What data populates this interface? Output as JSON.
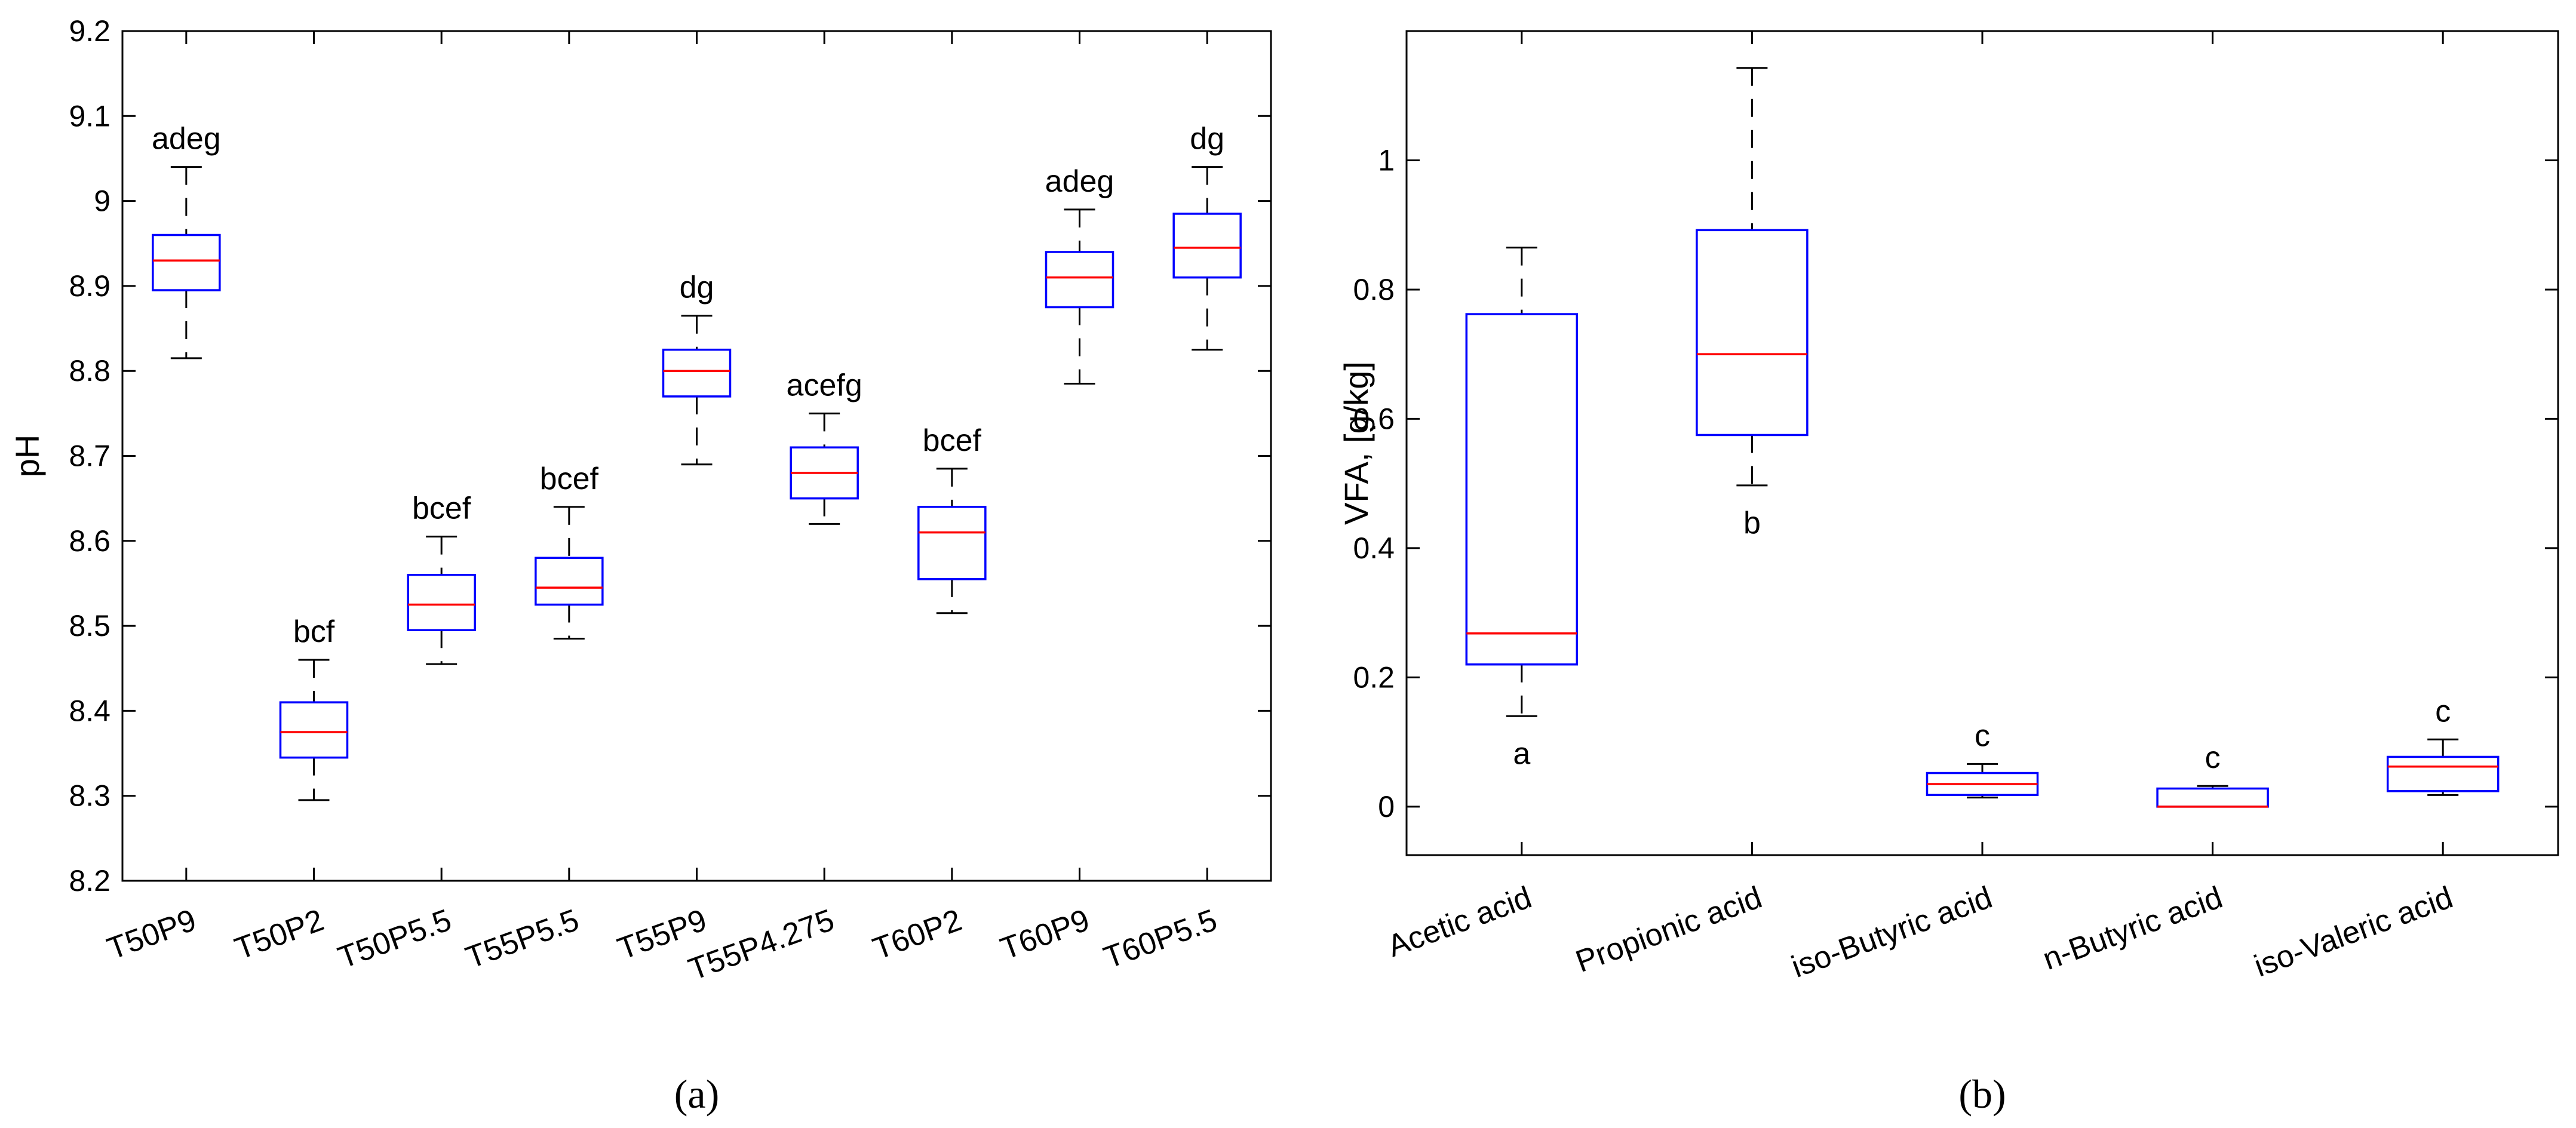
{
  "chart_data": [
    {
      "type": "boxplot",
      "panel_label": "(a)",
      "ylabel": "pH",
      "xlabel": "",
      "ylim": [
        8.2,
        9.2
      ],
      "yticks": [
        8.2,
        8.3,
        8.4,
        8.5,
        8.6,
        8.7,
        8.8,
        8.9,
        9,
        9.1,
        9.2
      ],
      "ytick_labels": [
        "8.2",
        "8.3",
        "8.4",
        "8.5",
        "8.6",
        "8.7",
        "8.8",
        "8.9",
        "9",
        "9.1",
        "9.2"
      ],
      "grid": false,
      "categories": [
        "T50P9",
        "T50P2",
        "T50P5.5",
        "T55P5.5",
        "T55P9",
        "T55P4.275",
        "T60P2",
        "T60P9",
        "T60P5.5"
      ],
      "boxes": [
        {
          "min": 8.815,
          "q1": 8.895,
          "median": 8.93,
          "q3": 8.96,
          "max": 9.04,
          "group": "adeg"
        },
        {
          "min": 8.295,
          "q1": 8.345,
          "median": 8.375,
          "q3": 8.41,
          "max": 8.46,
          "group": "bcf"
        },
        {
          "min": 8.455,
          "q1": 8.495,
          "median": 8.525,
          "q3": 8.56,
          "max": 8.605,
          "group": "bcef"
        },
        {
          "min": 8.485,
          "q1": 8.525,
          "median": 8.545,
          "q3": 8.58,
          "max": 8.64,
          "group": "bcef"
        },
        {
          "min": 8.69,
          "q1": 8.77,
          "median": 8.8,
          "q3": 8.825,
          "max": 8.865,
          "group": "dg"
        },
        {
          "min": 8.62,
          "q1": 8.65,
          "median": 8.68,
          "q3": 8.71,
          "max": 8.75,
          "group": "acefg"
        },
        {
          "min": 8.515,
          "q1": 8.555,
          "median": 8.61,
          "q3": 8.64,
          "max": 8.685,
          "group": "bcef"
        },
        {
          "min": 8.785,
          "q1": 8.875,
          "median": 8.91,
          "q3": 8.94,
          "max": 8.99,
          "group": "adeg"
        },
        {
          "min": 8.825,
          "q1": 8.91,
          "median": 8.945,
          "q3": 8.985,
          "max": 9.04,
          "group": "dg"
        }
      ]
    },
    {
      "type": "boxplot",
      "panel_label": "(b)",
      "ylabel": "VFA, [g/kg]",
      "xlabel": "",
      "ylim": [
        -0.075,
        1.2
      ],
      "yticks": [
        0,
        0.2,
        0.4,
        0.6,
        0.8,
        1
      ],
      "ytick_labels": [
        "0",
        "0.2",
        "0.4",
        "0.6",
        "0.8",
        "1"
      ],
      "grid": false,
      "categories": [
        "Acetic acid",
        "Propionic acid",
        "iso-Butyric acid",
        "n-Butyric acid",
        "iso-Valeric acid"
      ],
      "boxes": [
        {
          "min": 0.14,
          "q1": 0.22,
          "median": 0.268,
          "q3": 0.762,
          "max": 0.865,
          "group": "a",
          "group_position": "below"
        },
        {
          "min": 0.497,
          "q1": 0.575,
          "median": 0.7,
          "q3": 0.892,
          "max": 1.143,
          "group": "b",
          "group_position": "below"
        },
        {
          "min": 0.014,
          "q1": 0.018,
          "median": 0.035,
          "q3": 0.052,
          "max": 0.066,
          "group": "c",
          "group_position": "above"
        },
        {
          "min": 0.0,
          "q1": 0.0,
          "median": 0.0,
          "q3": 0.028,
          "max": 0.032,
          "group": "c",
          "group_position": "above"
        },
        {
          "min": 0.018,
          "q1": 0.024,
          "median": 0.062,
          "q3": 0.077,
          "max": 0.104,
          "group": "c",
          "group_position": "above"
        }
      ]
    }
  ],
  "colors": {
    "box": "#0000ff",
    "median": "#ff0000",
    "whisker": "#000000",
    "axes": "#000000",
    "background": "#ffffff"
  }
}
